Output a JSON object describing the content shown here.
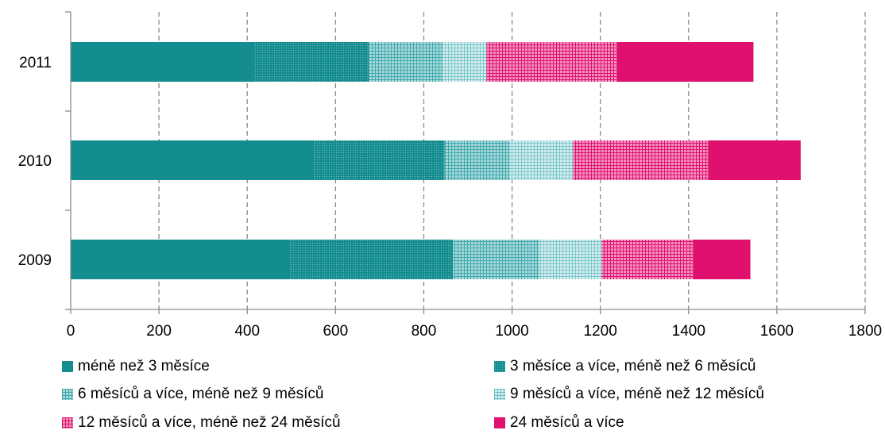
{
  "chart_data": {
    "type": "bar",
    "orientation": "horizontal",
    "stacked": true,
    "categories": [
      "2011",
      "2010",
      "2009"
    ],
    "series": [
      {
        "name": "méně než 3 měsíce",
        "values": [
          415,
          552,
          498
        ],
        "color": "#138D90",
        "pattern": "solid"
      },
      {
        "name": "3 měsíce a více, méně než 6 měsíců",
        "values": [
          260,
          295,
          368
        ],
        "color": "#138D90",
        "pattern": "dense-dots"
      },
      {
        "name": "6 měsíců a více, méně než 9 měsíců",
        "values": [
          168,
          148,
          195
        ],
        "color": "#3FA9AC",
        "pattern": "grid"
      },
      {
        "name": "9 měsíců a více, méně než 12 měsíců",
        "values": [
          99,
          143,
          142
        ],
        "color": "#6CC0C3",
        "pattern": "sparse-grid"
      },
      {
        "name": "12 měsíců a více, méně než 24 měsíců",
        "values": [
          295,
          306,
          207
        ],
        "color": "#E0106E",
        "pattern": "grid"
      },
      {
        "name": "24 měsíců a více",
        "values": [
          310,
          210,
          130
        ],
        "color": "#E0106E",
        "pattern": "solid"
      }
    ],
    "xlim": [
      0,
      1800
    ],
    "xticks": [
      "0",
      "200",
      "400",
      "600",
      "800",
      "1000",
      "1200",
      "1400",
      "1600",
      "1800"
    ],
    "grid": "vertical dashed",
    "legend_position": "bottom",
    "title": "",
    "xlabel": "",
    "ylabel": ""
  }
}
